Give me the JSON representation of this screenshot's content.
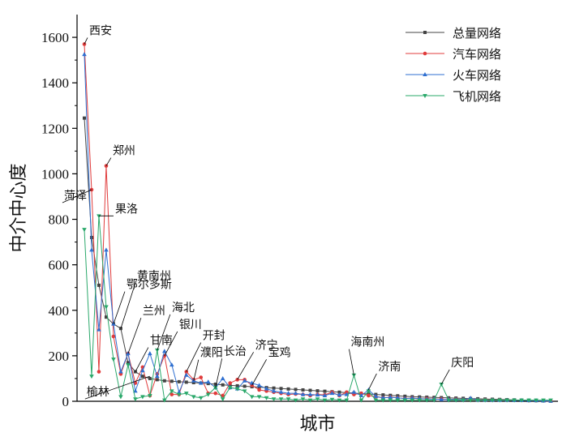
{
  "chart_data": {
    "type": "line",
    "title": "",
    "xlabel": "城市",
    "ylabel": "中介中心度",
    "ylim": [
      0,
      1700
    ],
    "yticks": [
      0,
      200,
      400,
      600,
      800,
      1000,
      1200,
      1400,
      1600
    ],
    "x": [
      1,
      2,
      3,
      4,
      5,
      6,
      7,
      8,
      9,
      10,
      11,
      12,
      13,
      14,
      15,
      16,
      17,
      18,
      19,
      20,
      21,
      22,
      23,
      24,
      25,
      26,
      27,
      28,
      29,
      30,
      31,
      32,
      33,
      34,
      35,
      36,
      37,
      38,
      39,
      40,
      41,
      42,
      43,
      44,
      45,
      46,
      47,
      48,
      49,
      50,
      51,
      52,
      53,
      54,
      55,
      56,
      57,
      58,
      59,
      60,
      61,
      62,
      63,
      64,
      65
    ],
    "xlim": [
      0,
      66
    ],
    "grid": false,
    "legend_position": "top-right",
    "series": [
      {
        "name": "总量网络",
        "color": "#444444",
        "marker": "square",
        "values": [
          1245,
          720,
          510,
          370,
          340,
          320,
          170,
          130,
          110,
          100,
          95,
          90,
          88,
          86,
          84,
          82,
          80,
          78,
          75,
          72,
          70,
          68,
          66,
          64,
          62,
          60,
          58,
          56,
          54,
          52,
          50,
          48,
          46,
          44,
          42,
          40,
          38,
          36,
          34,
          32,
          30,
          28,
          26,
          24,
          22,
          20,
          19,
          18,
          17,
          16,
          15,
          14,
          13,
          12,
          11,
          10,
          9,
          8,
          7,
          6,
          5,
          4,
          3,
          2,
          1
        ]
      },
      {
        "name": "汽车网络",
        "color": "#e03c3c",
        "marker": "circle",
        "values": [
          1570,
          930,
          130,
          1035,
          285,
          120,
          210,
          80,
          150,
          25,
          120,
          200,
          30,
          30,
          130,
          95,
          105,
          35,
          35,
          25,
          80,
          95,
          95,
          70,
          50,
          45,
          40,
          35,
          30,
          32,
          30,
          25,
          30,
          28,
          40,
          25,
          40,
          30,
          35,
          25,
          20,
          15,
          18,
          15,
          12,
          14,
          10,
          12,
          10,
          10,
          8,
          9,
          7,
          8,
          6,
          7,
          5,
          6,
          5,
          4,
          4,
          3,
          3,
          2,
          1
        ]
      },
      {
        "name": "火车网络",
        "color": "#2f6fd0",
        "marker": "triangle-up",
        "values": [
          1525,
          665,
          315,
          665,
          340,
          130,
          210,
          45,
          135,
          210,
          110,
          220,
          160,
          40,
          115,
          90,
          80,
          85,
          60,
          100,
          60,
          55,
          90,
          80,
          70,
          55,
          45,
          40,
          35,
          35,
          30,
          30,
          28,
          25,
          35,
          28,
          30,
          40,
          25,
          50,
          22,
          15,
          18,
          15,
          12,
          14,
          12,
          10,
          10,
          8,
          8,
          8,
          7,
          14,
          6,
          6,
          5,
          5,
          5,
          4,
          4,
          3,
          3,
          2,
          1
        ]
      },
      {
        "name": "飞机网络",
        "color": "#2aa86a",
        "marker": "triangle-down",
        "values": [
          755,
          110,
          815,
          415,
          185,
          20,
          160,
          10,
          20,
          25,
          225,
          5,
          45,
          30,
          35,
          20,
          15,
          30,
          60,
          10,
          60,
          55,
          45,
          20,
          20,
          15,
          10,
          10,
          10,
          5,
          10,
          5,
          10,
          5,
          8,
          5,
          5,
          115,
          5,
          45,
          5,
          5,
          5,
          5,
          5,
          5,
          5,
          5,
          5,
          75,
          5,
          5,
          5,
          5,
          5,
          5,
          5,
          5,
          5,
          5,
          5,
          5,
          5,
          5,
          5
        ]
      }
    ],
    "annotations": [
      {
        "text": "西安",
        "x": 1,
        "y": 1570
      },
      {
        "text": "菏泽",
        "x": 2,
        "y": 930
      },
      {
        "text": "郑州",
        "x": 4,
        "y": 1035
      },
      {
        "text": "果洛",
        "x": 3,
        "y": 815
      },
      {
        "text": "鄂尔多斯",
        "x": 5,
        "y": 340
      },
      {
        "text": "黄南州",
        "x": 6,
        "y": 320
      },
      {
        "text": "兰州",
        "x": 7,
        "y": 210
      },
      {
        "text": "甘南",
        "x": 8,
        "y": 130
      },
      {
        "text": "海北",
        "x": 11,
        "y": 225
      },
      {
        "text": "银川",
        "x": 12,
        "y": 200
      },
      {
        "text": "开封",
        "x": 15,
        "y": 130
      },
      {
        "text": "濮阳",
        "x": 16,
        "y": 90
      },
      {
        "text": "长治",
        "x": 19,
        "y": 60
      },
      {
        "text": "济宁",
        "x": 22,
        "y": 95
      },
      {
        "text": "宝鸡",
        "x": 24,
        "y": 70
      },
      {
        "text": "海南州",
        "x": 38,
        "y": 115
      },
      {
        "text": "济南",
        "x": 40,
        "y": 50
      },
      {
        "text": "庆阳",
        "x": 50,
        "y": 75
      },
      {
        "text": "榆林",
        "x": 10,
        "y": 110
      }
    ]
  }
}
